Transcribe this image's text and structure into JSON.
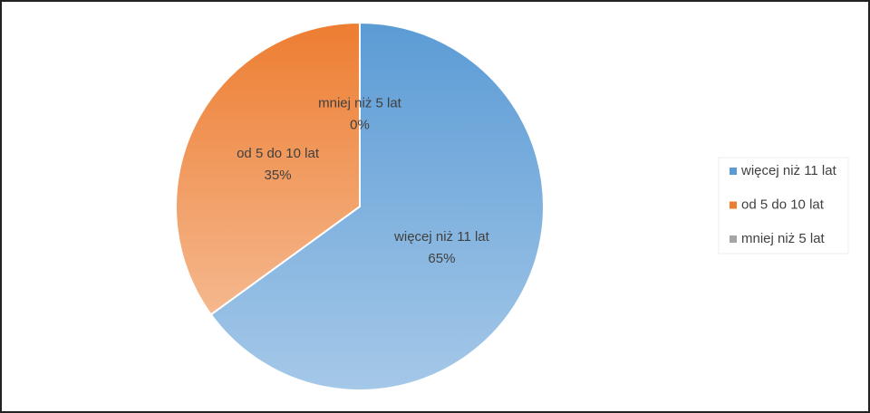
{
  "chart_data": {
    "type": "pie",
    "categories": [
      "więcej niż 11 lat",
      "od 5 do 10 lat",
      "mniej niż 5 lat"
    ],
    "values": [
      65,
      35,
      0
    ],
    "value_labels": [
      "65%",
      "35%",
      "0%"
    ],
    "colors": [
      "#5b9bd5",
      "#ed7d31",
      "#a5a5a5"
    ],
    "legend": "right"
  }
}
